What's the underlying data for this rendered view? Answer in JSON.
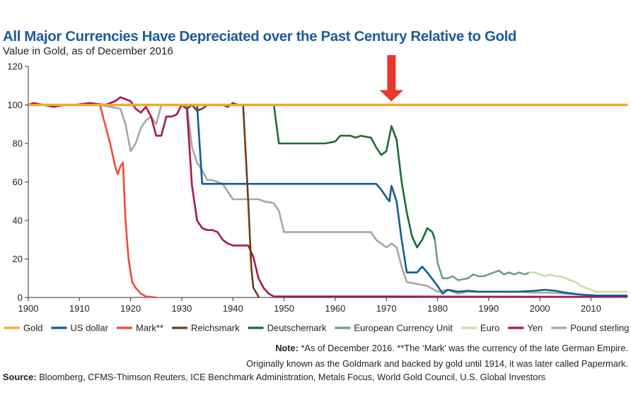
{
  "chart_data": {
    "type": "line",
    "title": "All Major Currencies Have Depreciated over the Past Century Relative to Gold",
    "subtitle": "Value in Gold, as of December 2016",
    "xlim": [
      1900,
      2017
    ],
    "ylim": [
      0,
      120
    ],
    "x_ticks": [
      1900,
      1910,
      1920,
      1930,
      1940,
      1950,
      1960,
      1970,
      1980,
      1990,
      2000,
      2010
    ],
    "x_tick_labels": [
      "1900",
      "1910",
      "1920",
      "1930",
      "1940",
      "1950",
      "1960",
      "1970",
      "1980",
      "1990",
      "2000",
      "2010"
    ],
    "y_ticks": [
      0,
      20,
      40,
      60,
      80,
      100,
      120
    ],
    "y_tick_labels": [
      "0",
      "20",
      "40",
      "60",
      "80",
      "100",
      "120"
    ],
    "annotation": {
      "type": "arrow-down",
      "x": 1971,
      "color": "#e8382e"
    },
    "series": [
      {
        "name": "Gold",
        "color": "#f6a531",
        "width": 3.2,
        "points": [
          [
            1900,
            100
          ],
          [
            2017,
            100
          ]
        ]
      },
      {
        "name": "Pound sterling",
        "color": "#a6a6a6",
        "width": 2.6,
        "points": [
          [
            1900,
            100
          ],
          [
            1914,
            100
          ],
          [
            1916,
            99
          ],
          [
            1918,
            98
          ],
          [
            1919,
            90
          ],
          [
            1920,
            76
          ],
          [
            1921,
            80
          ],
          [
            1922,
            88
          ],
          [
            1923,
            92
          ],
          [
            1924,
            94
          ],
          [
            1925,
            90
          ],
          [
            1926,
            100
          ],
          [
            1931,
            100
          ],
          [
            1932,
            78
          ],
          [
            1933,
            70
          ],
          [
            1934,
            66
          ],
          [
            1935,
            61
          ],
          [
            1936,
            61
          ],
          [
            1937,
            60
          ],
          [
            1938,
            59
          ],
          [
            1939,
            55
          ],
          [
            1940,
            51
          ],
          [
            1945,
            51
          ],
          [
            1946,
            50
          ],
          [
            1948,
            49
          ],
          [
            1949,
            45
          ],
          [
            1950,
            34
          ],
          [
            1967,
            34
          ],
          [
            1968,
            30
          ],
          [
            1969,
            28
          ],
          [
            1970,
            26
          ],
          [
            1971,
            28
          ],
          [
            1972,
            26
          ],
          [
            1973,
            16
          ],
          [
            1974,
            8
          ],
          [
            1976,
            7
          ],
          [
            1978,
            6
          ],
          [
            1980,
            3
          ],
          [
            1982,
            4
          ],
          [
            1984,
            2
          ],
          [
            1986,
            3
          ],
          [
            1988,
            3
          ],
          [
            1990,
            3
          ],
          [
            1993,
            3
          ],
          [
            1996,
            3
          ],
          [
            1999,
            2.5
          ],
          [
            2002,
            2.5
          ],
          [
            2005,
            2
          ],
          [
            2008,
            1.5
          ],
          [
            2011,
            1
          ],
          [
            2013,
            1
          ],
          [
            2017,
            1
          ]
        ]
      },
      {
        "name": "Mark**",
        "color": "#ef4b37",
        "width": 2.6,
        "points": [
          [
            1900,
            100
          ],
          [
            1914,
            100
          ],
          [
            1915,
            90
          ],
          [
            1916,
            80
          ],
          [
            1917,
            68
          ],
          [
            1917.5,
            64
          ],
          [
            1918,
            68
          ],
          [
            1918.5,
            70
          ],
          [
            1919,
            40
          ],
          [
            1919.6,
            20
          ],
          [
            1920.3,
            8
          ],
          [
            1921,
            5
          ],
          [
            1922,
            2
          ],
          [
            1923,
            0.5
          ],
          [
            1925,
            0
          ]
        ]
      },
      {
        "name": "Yen",
        "color": "#a8174f",
        "width": 2.6,
        "points": [
          [
            1900,
            100
          ],
          [
            1901,
            101
          ],
          [
            1903,
            100
          ],
          [
            1905,
            99
          ],
          [
            1907,
            100
          ],
          [
            1909,
            100
          ],
          [
            1912,
            101
          ],
          [
            1915,
            100
          ],
          [
            1917,
            102
          ],
          [
            1918,
            104
          ],
          [
            1920,
            102
          ],
          [
            1921,
            98
          ],
          [
            1922,
            96
          ],
          [
            1923,
            99
          ],
          [
            1924,
            94
          ],
          [
            1925,
            84
          ],
          [
            1926,
            84
          ],
          [
            1927,
            94
          ],
          [
            1928,
            94
          ],
          [
            1929,
            95
          ],
          [
            1930,
            100
          ],
          [
            1931,
            98
          ],
          [
            1932,
            58
          ],
          [
            1933,
            40
          ],
          [
            1934,
            36
          ],
          [
            1935,
            35
          ],
          [
            1936,
            35
          ],
          [
            1937,
            34
          ],
          [
            1938,
            30
          ],
          [
            1939,
            28
          ],
          [
            1940,
            27
          ],
          [
            1943,
            27
          ],
          [
            1944,
            21
          ],
          [
            1945,
            10
          ],
          [
            1946,
            5
          ],
          [
            1947,
            2
          ],
          [
            1948,
            0.5
          ],
          [
            1970,
            0.5
          ],
          [
            2017,
            0.3
          ]
        ]
      },
      {
        "name": "Reichsmark",
        "color": "#6e3c12",
        "width": 2.6,
        "points": [
          [
            1924,
            100
          ],
          [
            1930,
            100
          ],
          [
            1931,
            98
          ],
          [
            1932,
            100
          ],
          [
            1933,
            97
          ],
          [
            1934,
            98
          ],
          [
            1935,
            100
          ],
          [
            1938,
            100
          ],
          [
            1939,
            99
          ],
          [
            1940,
            101
          ],
          [
            1941,
            100
          ],
          [
            1942,
            100
          ],
          [
            1943,
            50
          ],
          [
            1943.6,
            15
          ],
          [
            1944,
            5
          ],
          [
            1945,
            0.5
          ]
        ]
      },
      {
        "name": "US dollar",
        "color": "#0d5d95",
        "width": 2.6,
        "points": [
          [
            1900,
            100
          ],
          [
            1933,
            100
          ],
          [
            1934,
            59
          ],
          [
            1968,
            59
          ],
          [
            1969,
            56
          ],
          [
            1970,
            52
          ],
          [
            1970.6,
            50
          ],
          [
            1971,
            58
          ],
          [
            1972,
            50
          ],
          [
            1973,
            30
          ],
          [
            1974,
            13
          ],
          [
            1976,
            13
          ],
          [
            1977,
            16
          ],
          [
            1978,
            13
          ],
          [
            1980,
            6
          ],
          [
            1981,
            2
          ],
          [
            1982,
            4
          ],
          [
            1984,
            3
          ],
          [
            1986,
            3.5
          ],
          [
            1988,
            3
          ],
          [
            1990,
            3
          ],
          [
            1993,
            3
          ],
          [
            1996,
            3
          ],
          [
            1999,
            3.5
          ],
          [
            2001,
            4
          ],
          [
            2003,
            3.5
          ],
          [
            2005,
            2.5
          ],
          [
            2008,
            1.5
          ],
          [
            2011,
            1
          ],
          [
            2013,
            1
          ],
          [
            2017,
            1
          ]
        ]
      },
      {
        "name": "Deutschemark",
        "color": "#1b6b36",
        "width": 2.6,
        "points": [
          [
            1948,
            100
          ],
          [
            1949,
            80
          ],
          [
            1958,
            80
          ],
          [
            1960,
            81
          ],
          [
            1961,
            84
          ],
          [
            1963,
            84
          ],
          [
            1964,
            83
          ],
          [
            1965,
            84
          ],
          [
            1967,
            83
          ],
          [
            1968,
            78
          ],
          [
            1969,
            74
          ],
          [
            1970,
            76
          ],
          [
            1971,
            89
          ],
          [
            1972,
            82
          ],
          [
            1973,
            60
          ],
          [
            1974,
            44
          ],
          [
            1975,
            32
          ],
          [
            1976,
            26
          ],
          [
            1977,
            30
          ],
          [
            1978,
            36
          ],
          [
            1979,
            34
          ],
          [
            1979.5,
            30
          ]
        ]
      },
      {
        "name": "European Currency Unit",
        "color": "#6b9f8a",
        "width": 2.6,
        "points": [
          [
            1979.5,
            30
          ],
          [
            1980,
            18
          ],
          [
            1981,
            10
          ],
          [
            1982,
            10
          ],
          [
            1983,
            11
          ],
          [
            1984,
            9
          ],
          [
            1986,
            10
          ],
          [
            1987,
            12
          ],
          [
            1988,
            11
          ],
          [
            1989,
            11
          ],
          [
            1990,
            12
          ],
          [
            1991,
            13
          ],
          [
            1992,
            14
          ],
          [
            1993,
            12
          ],
          [
            1994,
            13
          ],
          [
            1995,
            12
          ],
          [
            1996,
            13
          ],
          [
            1997,
            12
          ],
          [
            1998,
            13
          ]
        ]
      },
      {
        "name": "Euro",
        "color": "#c5e0a8",
        "width": 2.6,
        "points": [
          [
            1998,
            13
          ],
          [
            1999,
            13
          ],
          [
            2000,
            12
          ],
          [
            2001,
            11
          ],
          [
            2002,
            12
          ],
          [
            2003,
            11
          ],
          [
            2004,
            11
          ],
          [
            2005,
            10
          ],
          [
            2006,
            9
          ],
          [
            2007,
            8
          ],
          [
            2008,
            6
          ],
          [
            2009,
            5
          ],
          [
            2010,
            4
          ],
          [
            2011,
            3
          ],
          [
            2012,
            3
          ],
          [
            2013,
            3
          ],
          [
            2015,
            3
          ],
          [
            2017,
            3
          ]
        ]
      }
    ],
    "legend": {
      "position": "bottom",
      "items": [
        {
          "name": "Gold",
          "color": "#f6a531"
        },
        {
          "name": "US dollar",
          "color": "#0d5d95"
        },
        {
          "name": "Mark**",
          "color": "#ef4b37"
        },
        {
          "name": "Reichsmark",
          "color": "#6e3c12"
        },
        {
          "name": "Deutschemark",
          "color": "#1b6b36"
        },
        {
          "name": "European Currency Unit",
          "color": "#6b9f8a"
        },
        {
          "name": "Euro",
          "color": "#c5e0a8"
        },
        {
          "name": "Yen",
          "color": "#a8174f"
        },
        {
          "name": "Pound sterling",
          "color": "#a6a6a6"
        }
      ]
    }
  },
  "header": {
    "title": "All Major Currencies Have Depreciated over the Past Century Relative to Gold",
    "subtitle": "Value in Gold, as of December 2016"
  },
  "footer": {
    "note_label": "Note:",
    "note_line1": " *As of December 2016. **The ‘Mark’ was the currency of the late German Empire.",
    "note_line2": "Originally known as the Goldmark and backed by gold until 1914, it was later called Papermark.",
    "source_label": "Source:",
    "source_text": " Bloomberg, CFMS-Thimson Reuters, ICE Benchmark Administration, Metals Focus, World Gold Council, U.S. Global Investors"
  }
}
